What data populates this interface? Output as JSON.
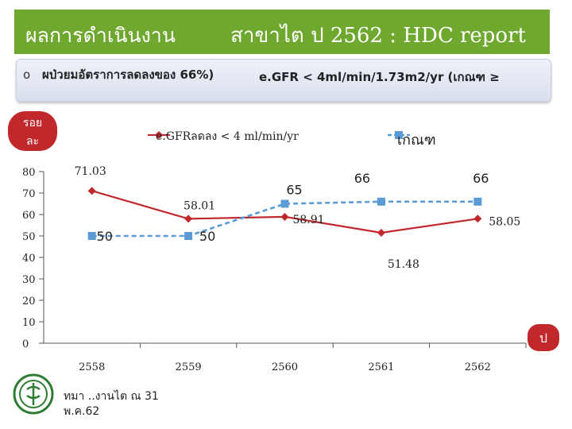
{
  "header": {
    "title_left": "ผลการดำเนินงาน",
    "title_right": "สาขาไต ป  2562  : HDC report"
  },
  "subtitle": {
    "bullet": "o",
    "left": "ผป่วยมอัตราการลดลงของ 66%)",
    "right": "e.GFR < 4ml/min/1.73m2/yr  (เกณฑ  ≥"
  },
  "percent_badge": {
    "line1": "รอย",
    "line2": "ละ"
  },
  "corner_badge": "ป",
  "footer": {
    "line1": "ทมา   ..งานไต ณ 31",
    "line2": "พ.ค.62"
  },
  "colors": {
    "title_bar": "#6fa82f",
    "series_red": "#c0282c",
    "series_blue": "#5b9bd5",
    "axis": "#555555"
  },
  "icons": {
    "logo": "moph-logo-icon",
    "legend_red": "diamond-marker-icon",
    "legend_blue": "square-marker-icon"
  },
  "chart_data": {
    "type": "line",
    "categories": [
      "2558",
      "2559",
      "2560",
      "2561",
      "2562"
    ],
    "ylim": [
      0,
      80
    ],
    "yticks": [
      "0",
      "10",
      "20",
      "30",
      "40",
      "50",
      "60",
      "70",
      "80"
    ],
    "series": [
      {
        "name": "e.GFRลดลง < 4 ml/min/yr",
        "values": [
          71.03,
          58.01,
          58.91,
          51.48,
          58.05
        ],
        "labels": [
          "71.03",
          "58.01",
          "58.91",
          "51.48",
          "58.05"
        ],
        "color": "#c0282c",
        "marker": "diamond",
        "style": "solid"
      },
      {
        "name": "เกณฑ",
        "values": [
          50,
          50,
          65,
          66,
          66
        ],
        "labels": [
          "50",
          "50",
          "65",
          "66",
          "66"
        ],
        "color": "#5b9bd5",
        "marker": "square",
        "style": "dashed"
      }
    ],
    "grid": false,
    "legend": "top"
  }
}
